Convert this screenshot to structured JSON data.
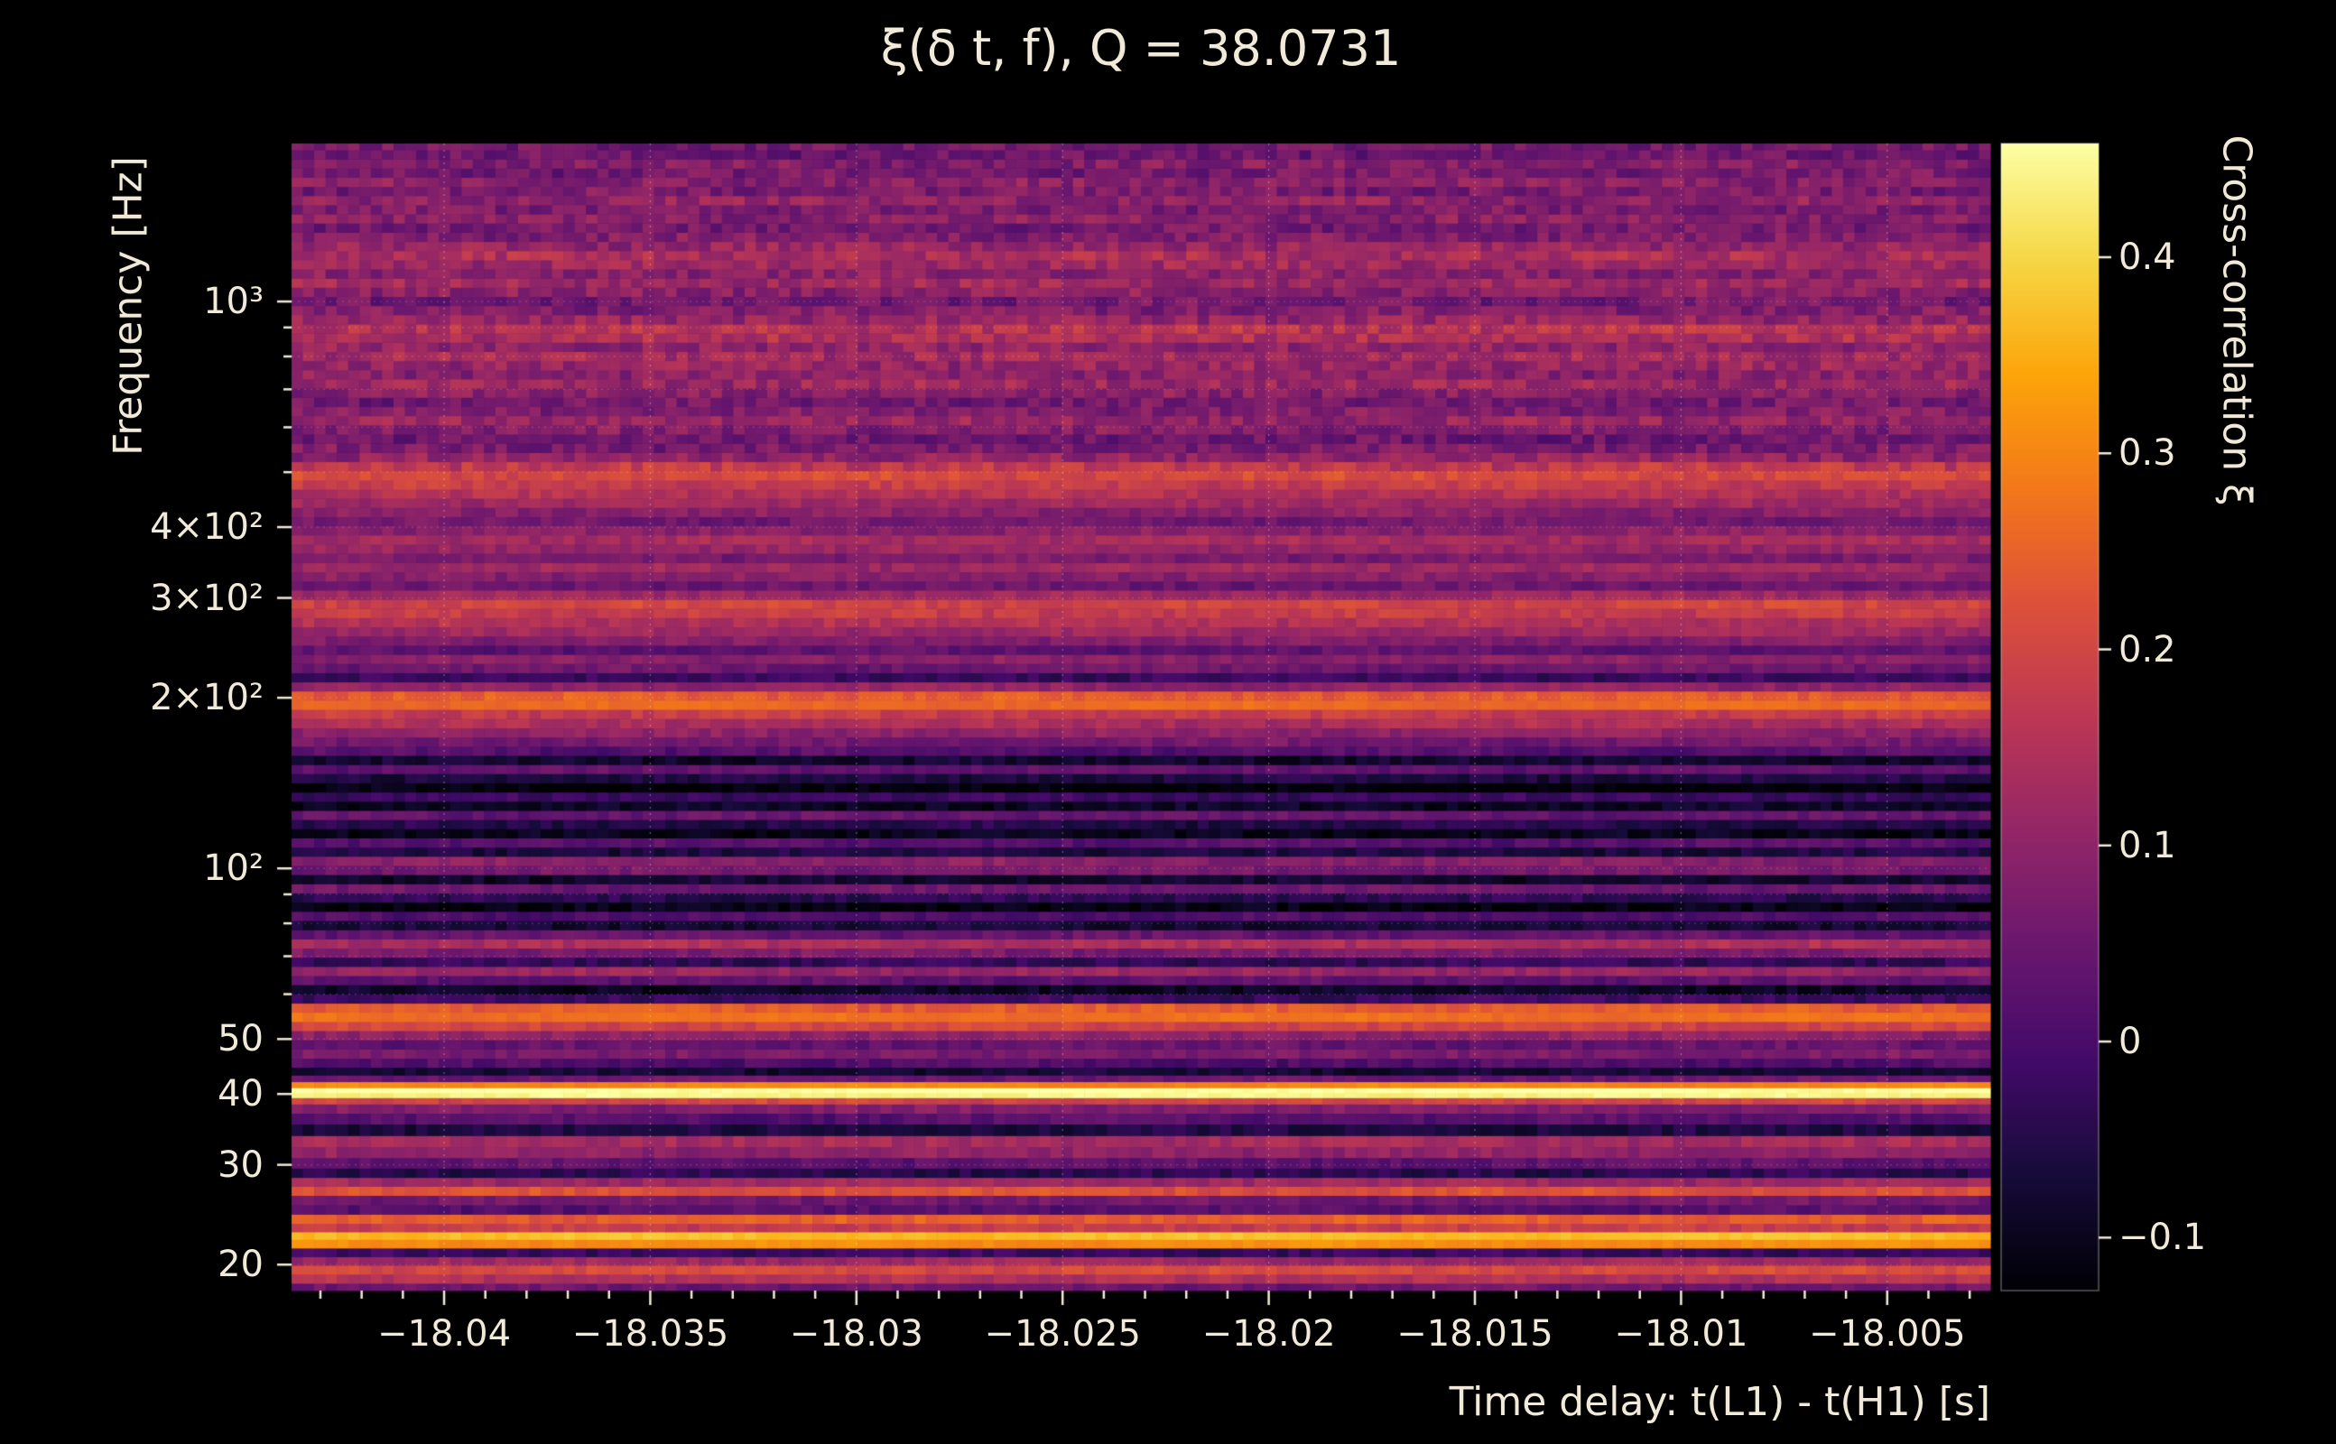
{
  "title": "ξ(δ t, f), Q = 38.0731",
  "axes": {
    "x_label": "Time delay: t(L1) - t(H1) [s]",
    "y_label": "Frequency [Hz]",
    "x_ticks": [
      {
        "value": -18.04,
        "label": "−18.04"
      },
      {
        "value": -18.035,
        "label": "−18.035"
      },
      {
        "value": -18.03,
        "label": "−18.03"
      },
      {
        "value": -18.025,
        "label": "−18.025"
      },
      {
        "value": -18.02,
        "label": "−18.02"
      },
      {
        "value": -18.015,
        "label": "−18.015"
      },
      {
        "value": -18.01,
        "label": "−18.01"
      },
      {
        "value": -18.005,
        "label": "−18.005"
      }
    ],
    "y_ticks": [
      {
        "value": 1000,
        "label": "10³"
      },
      {
        "value": 400,
        "label": "4×10²"
      },
      {
        "value": 300,
        "label": "3×10²"
      },
      {
        "value": 200,
        "label": "2×10²"
      },
      {
        "value": 100,
        "label": "10²"
      },
      {
        "value": 50,
        "label": "50"
      },
      {
        "value": 40,
        "label": "40"
      },
      {
        "value": 30,
        "label": "30"
      },
      {
        "value": 20,
        "label": "20"
      }
    ]
  },
  "colorbar": {
    "label": "Cross-correlation ξ",
    "ticks": [
      {
        "value": 0.4,
        "label": "0.4"
      },
      {
        "value": 0.3,
        "label": "0.3"
      },
      {
        "value": 0.2,
        "label": "0.2"
      },
      {
        "value": 0.1,
        "label": "0.1"
      },
      {
        "value": 0.0,
        "label": "0"
      },
      {
        "value": -0.1,
        "label": "−0.1"
      }
    ]
  },
  "theme": {
    "background": "#000000",
    "text_color": "#f2ead9",
    "grid_color": "rgba(255,255,255,0.35)"
  },
  "chart_data": {
    "type": "heatmap",
    "title": "ξ(δ t, f), Q = 38.0731",
    "q": 38.0731,
    "xlabel": "Time delay: t(L1) - t(H1) [s]",
    "ylabel": "Frequency [Hz]",
    "value_label": "Cross-correlation ξ",
    "x_range": [
      -18.0437,
      -18.0025
    ],
    "y_range": [
      18,
      1900
    ],
    "y_scale": "log",
    "colormap": "inferno",
    "vmin": -0.127,
    "vmax": 0.458,
    "rows_format": [
      "frequency_hz",
      "xi"
    ],
    "rows": [
      [
        18.2,
        0.05
      ],
      [
        18.9,
        0.15
      ],
      [
        19.6,
        0.21
      ],
      [
        20.3,
        0.12
      ],
      [
        21.0,
        -0.02
      ],
      [
        21.8,
        0.31
      ],
      [
        22.5,
        0.37
      ],
      [
        23.2,
        0.18
      ],
      [
        24.1,
        0.24
      ],
      [
        25.0,
        0.02
      ],
      [
        26.0,
        0.06
      ],
      [
        27.0,
        0.22
      ],
      [
        28.0,
        0.12
      ],
      [
        29.0,
        -0.04
      ],
      [
        30.2,
        0.03
      ],
      [
        31.6,
        0.1
      ],
      [
        33.0,
        0.13
      ],
      [
        34.6,
        -0.06
      ],
      [
        36.2,
        0.02
      ],
      [
        37.8,
        0.08
      ],
      [
        39.0,
        0.2
      ],
      [
        39.8,
        0.44
      ],
      [
        40.6,
        0.46
      ],
      [
        41.5,
        0.3
      ],
      [
        42.6,
        0.05
      ],
      [
        43.8,
        -0.07
      ],
      [
        45.4,
        0.01
      ],
      [
        47.1,
        0.07
      ],
      [
        48.9,
        0.04
      ],
      [
        50.8,
        0.1
      ],
      [
        52.7,
        0.2
      ],
      [
        54.7,
        0.27
      ],
      [
        56.8,
        0.24
      ],
      [
        58.9,
        -0.02
      ],
      [
        61.2,
        -0.09
      ],
      [
        63.5,
        0.03
      ],
      [
        65.9,
        0.11
      ],
      [
        68.4,
        -0.03
      ],
      [
        71.0,
        0.07
      ],
      [
        73.7,
        0.14
      ],
      [
        76.5,
        0.04
      ],
      [
        79.4,
        -0.07
      ],
      [
        82.4,
        0.01
      ],
      [
        85.6,
        -0.11
      ],
      [
        88.8,
        -0.04
      ],
      [
        92.2,
        0.05
      ],
      [
        95.7,
        -0.08
      ],
      [
        99.3,
        0.06
      ],
      [
        103.1,
        0.09
      ],
      [
        107.0,
        -0.06
      ],
      [
        111.1,
        0.02
      ],
      [
        115.3,
        -0.1
      ],
      [
        119.7,
        -0.05
      ],
      [
        124.2,
        0.04
      ],
      [
        128.9,
        -0.09
      ],
      [
        133.8,
        -0.02
      ],
      [
        138.9,
        -0.12
      ],
      [
        144.2,
        -0.06
      ],
      [
        149.7,
        0.03
      ],
      [
        155.3,
        -0.08
      ],
      [
        161.2,
        0.02
      ],
      [
        167.4,
        0.06
      ],
      [
        173.7,
        0.1
      ],
      [
        180.3,
        0.14
      ],
      [
        187.2,
        0.18
      ],
      [
        194.3,
        0.26
      ],
      [
        201.7,
        0.24
      ],
      [
        209.3,
        0.1
      ],
      [
        217.3,
        -0.02
      ],
      [
        225.5,
        0.05
      ],
      [
        234.1,
        0.09
      ],
      [
        243.0,
        0.03
      ],
      [
        252.2,
        0.08
      ],
      [
        261.8,
        0.12
      ],
      [
        271.7,
        0.15
      ],
      [
        282.1,
        0.18
      ],
      [
        292.8,
        0.2
      ],
      [
        303.9,
        0.12
      ],
      [
        315.4,
        0.05
      ],
      [
        327.4,
        0.09
      ],
      [
        339.9,
        0.12
      ],
      [
        352.8,
        0.07
      ],
      [
        366.2,
        0.11
      ],
      [
        380.1,
        0.13
      ],
      [
        394.5,
        0.09
      ],
      [
        409.5,
        0.06
      ],
      [
        425.1,
        0.09
      ],
      [
        441.2,
        0.12
      ],
      [
        458.0,
        0.15
      ],
      [
        475.4,
        0.18
      ],
      [
        493.4,
        0.21
      ],
      [
        512.2,
        0.17
      ],
      [
        531.6,
        0.1
      ],
      [
        551.8,
        0.07
      ],
      [
        572.8,
        0.05
      ],
      [
        594.5,
        0.08
      ],
      [
        617.1,
        0.11
      ],
      [
        640.5,
        0.08
      ],
      [
        664.9,
        0.06
      ],
      [
        690.1,
        0.09
      ],
      [
        716.3,
        0.12
      ],
      [
        743.5,
        0.09
      ],
      [
        771.7,
        0.11
      ],
      [
        801.0,
        0.13
      ],
      [
        831.4,
        0.1
      ],
      [
        863.0,
        0.14
      ],
      [
        895.7,
        0.16
      ],
      [
        929.7,
        0.11
      ],
      [
        965.0,
        0.08
      ],
      [
        1001.6,
        0.06
      ],
      [
        1039.6,
        0.09
      ],
      [
        1079.1,
        0.12
      ],
      [
        1120.0,
        0.09
      ],
      [
        1162.5,
        0.12
      ],
      [
        1206.6,
        0.14
      ],
      [
        1252.4,
        0.11
      ],
      [
        1299.9,
        0.08
      ],
      [
        1349.2,
        0.06
      ],
      [
        1400.4,
        0.09
      ],
      [
        1453.6,
        0.07
      ],
      [
        1508.7,
        0.1
      ],
      [
        1565.9,
        0.07
      ],
      [
        1625.3,
        0.09
      ],
      [
        1687.0,
        0.06
      ],
      [
        1751.0,
        0.08
      ],
      [
        1817.4,
        0.05
      ],
      [
        1886.3,
        0.06
      ]
    ]
  }
}
